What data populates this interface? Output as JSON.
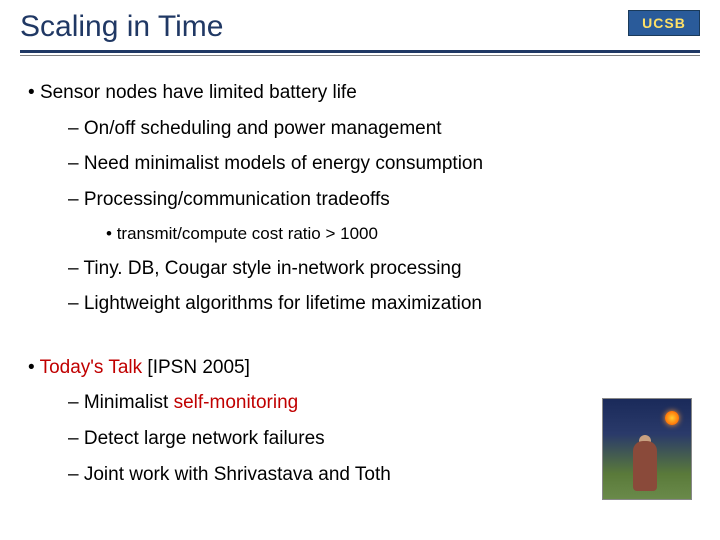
{
  "header": {
    "title": "Scaling in Time",
    "badge": "UCSB",
    "title_color": "#203864",
    "underline_color": "#1f3864"
  },
  "content": {
    "section1": {
      "main": "Sensor nodes have limited battery life",
      "sub": [
        "On/off scheduling and power management",
        "Need minimalist models of energy consumption",
        "Processing/communication tradeoffs",
        "Tiny. DB, Cougar style in-network processing",
        "Lightweight algorithms for lifetime maximization"
      ],
      "subsub": "transmit/compute cost ratio > 1000"
    },
    "section2": {
      "main_prefix": "Today's Talk",
      "main_suffix": "  [IPSN 2005]",
      "sub1_prefix": "Minimalist ",
      "sub1_highlight": "self-monitoring",
      "sub2": "Detect large network failures",
      "sub3": "Joint work with Shrivastava and Toth"
    }
  },
  "colors": {
    "highlight": "#c00000",
    "text": "#000000",
    "badge_bg": "#2a5b9a",
    "badge_text": "#ffe066"
  }
}
